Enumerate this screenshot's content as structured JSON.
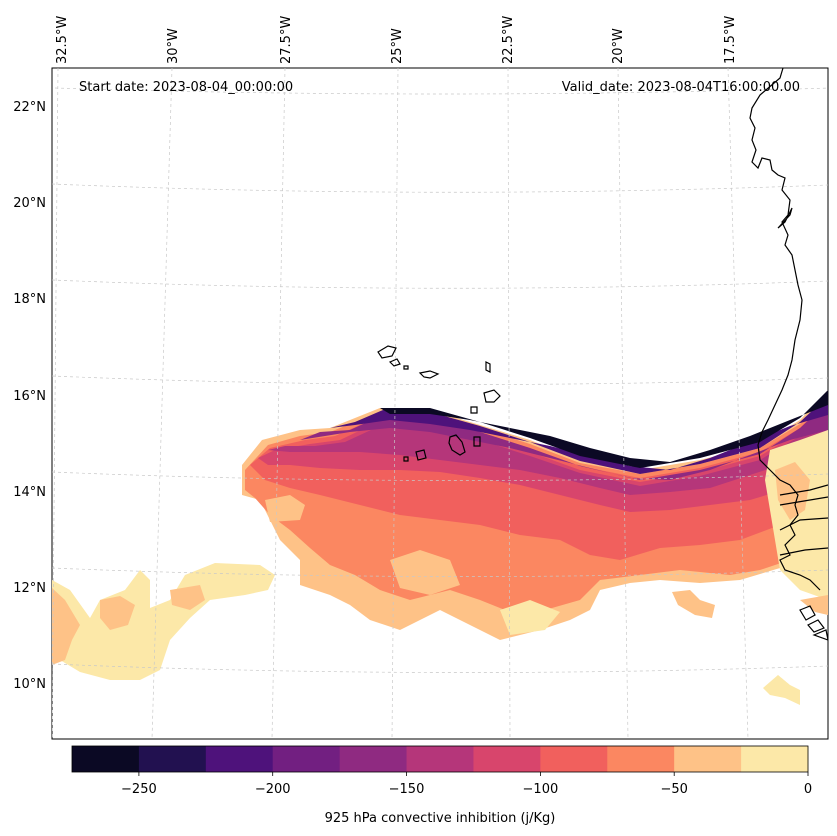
{
  "header": {
    "start_date": "Start date: 2023-08-04_00:00:00",
    "valid_date": "Valid_date: 2023-08-04T16:00:00.00"
  },
  "longitude_labels": [
    "32.5°W",
    "30°W",
    "27.5°W",
    "25°W",
    "22.5°W",
    "20°W",
    "17.5°W"
  ],
  "latitude_labels": [
    "22°N",
    "20°N",
    "18°N",
    "16°N",
    "14°N",
    "12°N",
    "10°N"
  ],
  "colorbar": {
    "label": "925 hPa convective inhibition (j/Kg)",
    "ticks": [
      "−250",
      "−200",
      "−150",
      "−100",
      "−50",
      "0"
    ],
    "levels": [
      -275,
      -250,
      -225,
      -200,
      -175,
      -150,
      -125,
      -100,
      -75,
      -50,
      -25,
      0
    ],
    "colors": [
      "#0b0924",
      "#221150",
      "#4e127b",
      "#721f81",
      "#8f2a81",
      "#b5367a",
      "#d8456c",
      "#f1605d",
      "#fb8761",
      "#fec287",
      "#fce8a8"
    ]
  },
  "chart_data": {
    "type": "filled-contour map",
    "variable": "925 hPa convective inhibition",
    "units": "j/Kg",
    "extent": {
      "lon": [
        -33,
        -15.5
      ],
      "lat": [
        9,
        22.8
      ]
    },
    "zero_cin_regions": "north of ~15.7°N over the ocean and most of the southwest; values strongest (most negative) along the northern edge of the band near 14–15.5°N"
  }
}
